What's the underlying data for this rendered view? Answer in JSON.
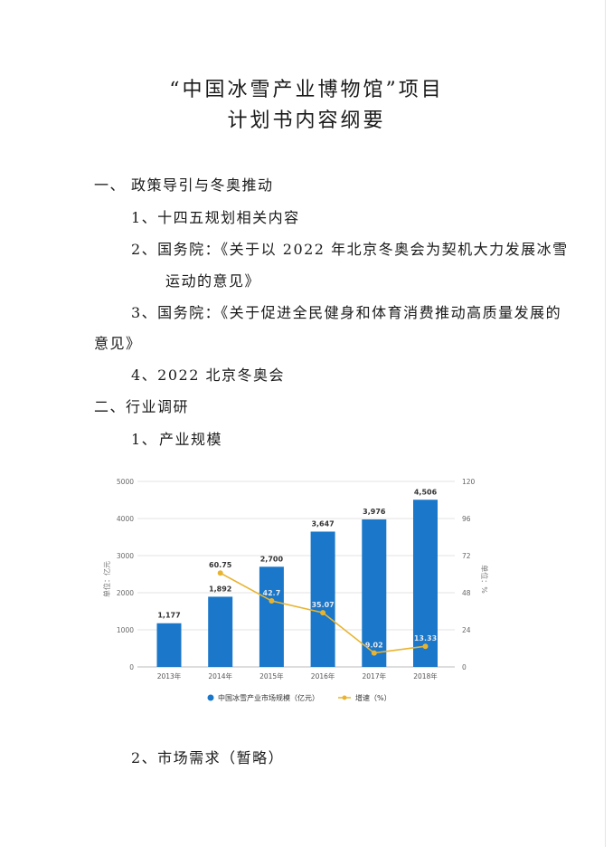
{
  "document": {
    "title_line1": "“中国冰雪产业博物馆”项目",
    "title_line2": "计划书内容纲要",
    "section1": {
      "num": "一、",
      "label": "政策导引与冬奥推动"
    },
    "items1": [
      "1、十四五规划相关内容",
      "2、国务院：《关于以 2022 年北京冬奥会为契机大力发展冰雪",
      "运动的意见》",
      "3、国务院：《关于促进全民健身和体育消费推动高质量发展的",
      "意见》",
      "4、2022 北京冬奥会"
    ],
    "section2": {
      "label": "二、行业调研"
    },
    "sub1": {
      "num": "1、",
      "label": "产业规模"
    },
    "sub2": {
      "label": "2、市场需求（暂略）"
    }
  },
  "chart_data": {
    "type": "bar",
    "categories": [
      "2013年",
      "2014年",
      "2015年",
      "2016年",
      "2017年",
      "2018年"
    ],
    "series": [
      {
        "name": "中国冰雪产业市场规模（亿元）",
        "type": "bar",
        "axis": "left",
        "color": "#1a77c9",
        "values": [
          1177,
          1892,
          2700,
          3647,
          3976,
          4506
        ],
        "labels": [
          "1,177",
          "1,892",
          "2,700",
          "3,647",
          "3,976",
          "4,506"
        ]
      },
      {
        "name": "增速（%）",
        "type": "line",
        "axis": "right",
        "color": "#e8b430",
        "values": [
          null,
          60.75,
          42.7,
          35.07,
          9.02,
          13.33
        ],
        "labels": [
          "",
          "60.75",
          "42.7",
          "35.07",
          "9.02",
          "13.33"
        ]
      }
    ],
    "ylabel_left": "单位：亿元",
    "ylabel_right": "单位：%",
    "ylim_left": [
      0,
      5000
    ],
    "ylim_right": [
      0,
      120
    ],
    "yticks_left": [
      "0",
      "1000",
      "2000",
      "3000",
      "4000",
      "5000"
    ],
    "yticks_right": [
      "0",
      "24",
      "48",
      "72",
      "96",
      "120"
    ],
    "grid": true,
    "legend": "bottom"
  }
}
